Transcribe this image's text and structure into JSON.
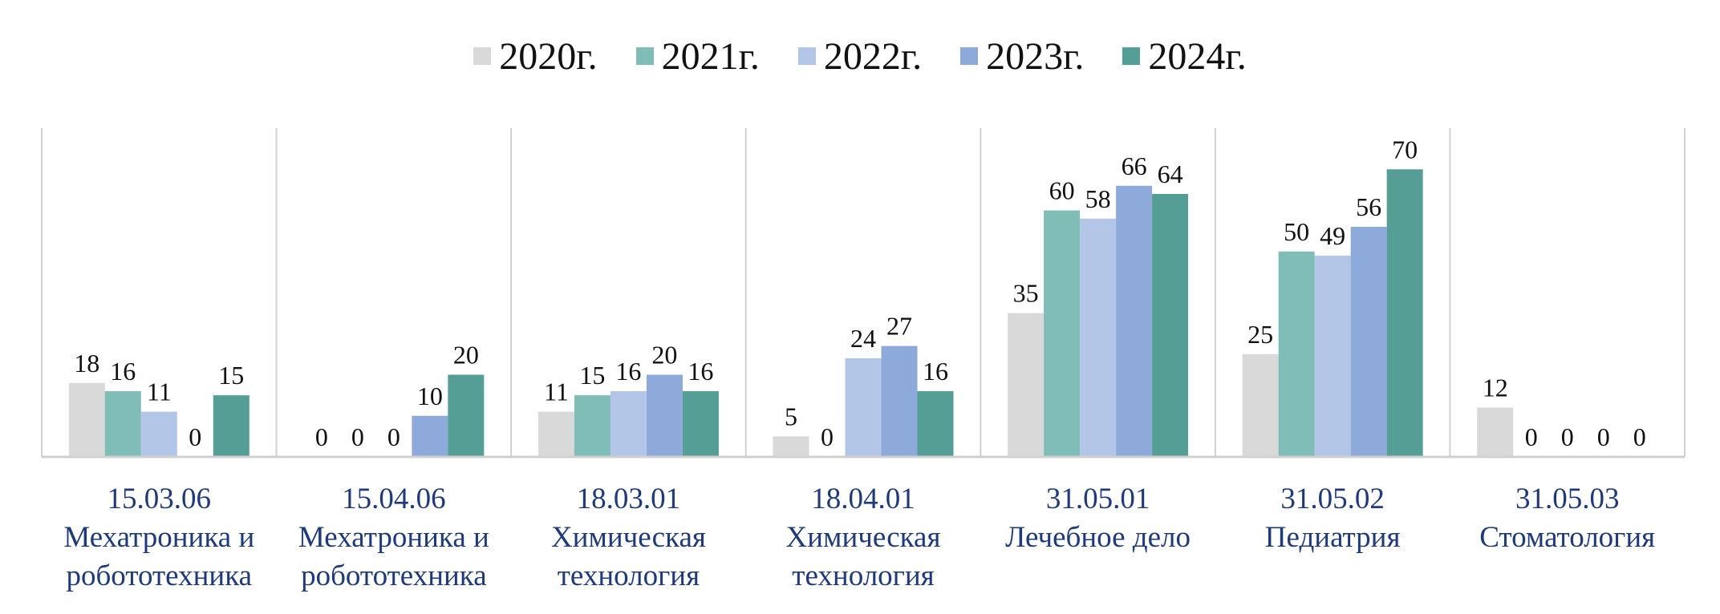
{
  "chart_data": {
    "type": "bar",
    "categories": [
      [
        "15.03.06",
        "Мехатроника и",
        "робототехника"
      ],
      [
        "15.04.06",
        "Мехатроника и",
        "робототехника"
      ],
      [
        "18.03.01",
        "Химическая",
        "технология"
      ],
      [
        "18.04.01",
        "Химическая",
        "технология"
      ],
      [
        "31.05.01",
        "Лечебное дело"
      ],
      [
        "31.05.02",
        "Педиатрия"
      ],
      [
        "31.05.03",
        "Стоматология"
      ]
    ],
    "series": [
      {
        "name": "2020г.",
        "color": "#d9d9d9",
        "values": [
          18,
          0,
          11,
          5,
          35,
          25,
          12
        ]
      },
      {
        "name": "2021г.",
        "color": "#80bdb7",
        "values": [
          16,
          0,
          15,
          0,
          60,
          50,
          0
        ]
      },
      {
        "name": "2022г.",
        "color": "#b4c6e7",
        "values": [
          11,
          0,
          16,
          24,
          58,
          49,
          0
        ]
      },
      {
        "name": "2023г.",
        "color": "#8eaadb",
        "values": [
          0,
          10,
          20,
          27,
          66,
          56,
          0
        ]
      },
      {
        "name": "2024г.",
        "color": "#559e96",
        "values": [
          15,
          20,
          16,
          16,
          64,
          70,
          0
        ]
      }
    ],
    "ylim": [
      0,
      80
    ],
    "legend": "top",
    "grid": false,
    "category_label_color": "#1f3a7a",
    "data_label_color": "#111111",
    "axis_color": "#d0d0d0"
  }
}
